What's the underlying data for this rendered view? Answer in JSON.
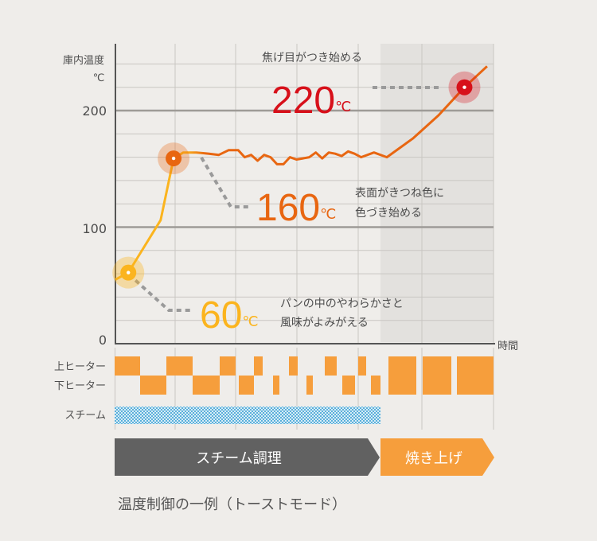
{
  "chart_data": {
    "type": "line",
    "title": "",
    "ylabel_line1": "庫内温度",
    "ylabel_line2": "℃",
    "xlabel": "時間",
    "ylim": [
      0,
      200
    ],
    "yticks": [
      "0",
      "100",
      "200"
    ],
    "grid": true,
    "series": [
      {
        "values": [
          [
            0,
            55
          ],
          [
            4,
            61
          ],
          [
            14,
            106
          ],
          [
            18,
            159
          ],
          [
            21,
            164
          ],
          [
            25,
            164
          ],
          [
            29,
            163
          ],
          [
            32,
            162
          ],
          [
            35,
            166
          ],
          [
            38,
            166
          ],
          [
            40,
            160
          ],
          [
            42,
            162
          ],
          [
            44,
            157
          ],
          [
            46,
            162
          ],
          [
            48,
            160
          ],
          [
            50,
            154
          ],
          [
            52,
            154
          ],
          [
            54,
            160
          ],
          [
            56,
            158
          ],
          [
            58,
            159
          ],
          [
            60,
            160
          ],
          [
            62,
            164
          ],
          [
            64,
            159
          ],
          [
            66,
            164
          ],
          [
            68,
            163
          ],
          [
            70,
            161
          ],
          [
            72,
            165
          ],
          [
            74,
            163
          ],
          [
            76,
            160
          ],
          [
            80,
            164
          ],
          [
            84,
            160
          ],
          [
            88,
            168
          ],
          [
            92,
            176
          ],
          [
            100,
            196
          ],
          [
            108,
            220
          ],
          [
            115,
            238
          ]
        ]
      }
    ],
    "annotations": [
      {
        "temp_label": "60",
        "unit": "℃",
        "text_line1": "パンの中のやわらかさと",
        "text_line2": "風味がよみがえる",
        "color": "#fbb41e"
      },
      {
        "temp_label": "160",
        "unit": "℃",
        "text_line1": "表面がきつね色に",
        "text_line2": "色づき始める",
        "color": "#e86611"
      },
      {
        "temp_label": "220",
        "unit": "℃",
        "text_line1": "焦げ目がつき始める",
        "text_line2": "",
        "color": "#d7101a"
      }
    ],
    "timeline_rows": {
      "upper_heater": "上ヒーター",
      "lower_heater": "下ヒーター",
      "steam": "スチーム"
    },
    "phases": [
      {
        "label": "スチーム調理",
        "color": "#616161"
      },
      {
        "label": "焼き上げ",
        "color": "#f69e3c"
      }
    ],
    "caption": "温度制御の一例（トーストモード）"
  },
  "colors": {
    "heater": "#f69e3c",
    "steam": "#5bb0db",
    "grid": "#c9c6c2",
    "line_low": "#fbb41e",
    "line_high": "#e86611",
    "text": "#4d4d4d"
  }
}
